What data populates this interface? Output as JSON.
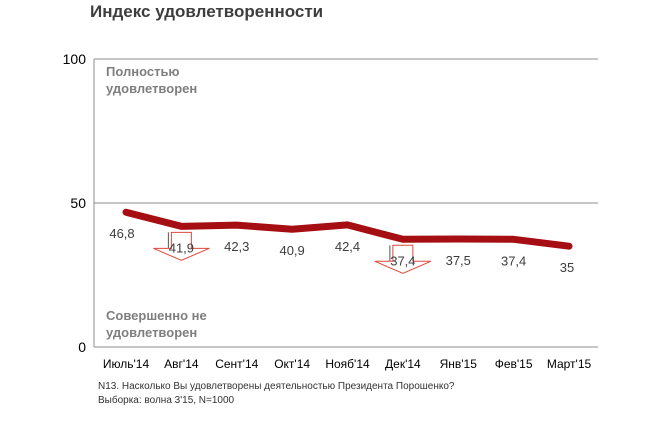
{
  "chart_data": {
    "type": "line",
    "title": "Индекс удовлетворенности",
    "categories": [
      "Июль'14",
      "Авг'14",
      "Сент'14",
      "Окт'14",
      "Нояб'14",
      "Дек'14",
      "Янв'15",
      "Фев'15",
      "Март'15"
    ],
    "series": [
      {
        "values": [
          46.8,
          41.9,
          42.3,
          40.9,
          42.4,
          37.4,
          37.5,
          37.4,
          35
        ],
        "labels": [
          "46,8",
          "41,9",
          "42,3",
          "40,9",
          "42,4",
          "37,4",
          "37,5",
          "37,4",
          "35"
        ],
        "color": "#a50e12"
      }
    ],
    "ylim": [
      0,
      100
    ],
    "yticks": [
      0,
      50,
      100
    ],
    "ytick_labels": [
      "0",
      "50",
      "100"
    ],
    "gridlines": [
      50,
      100
    ],
    "annotations": {
      "top": [
        "Полностью",
        "удовлетворен"
      ],
      "bottom": [
        "Совершенно не",
        "удовлетворен"
      ]
    },
    "decline_markers": [
      "Авг'14",
      "Дек'14"
    ],
    "marker_color": "#e0473b",
    "axis_label_color": "#7f7f7f"
  },
  "notes": {
    "question": "N13. Насколько  Вы удовлетворены деятельностью Президента Порошенко?",
    "sample": "Выборка: волна 3'15, N=1000"
  }
}
